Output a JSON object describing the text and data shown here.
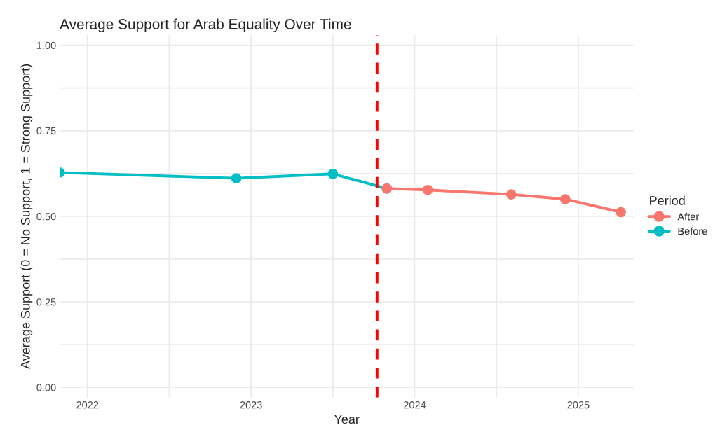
{
  "chart_data": {
    "type": "line",
    "title": "Average Support for Arab Equality Over Time",
    "xlabel": "Year",
    "ylabel": "Average Support (0 = No Support, 1 = Strong Support)",
    "legend_title": "Period",
    "series": [
      {
        "name": "After",
        "color": "#f8766d",
        "x": [
          2023.83,
          2024.08,
          2024.59,
          2024.92,
          2025.26
        ],
        "values": [
          0.581,
          0.577,
          0.564,
          0.55,
          0.512
        ]
      },
      {
        "name": "Before",
        "color": "#00bfc4",
        "x": [
          2021.83,
          2022.91,
          2023.5,
          2023.83
        ],
        "values": [
          0.628,
          0.611,
          0.624,
          0.581
        ]
      }
    ],
    "xlim": [
      2021.83,
      2025.34
    ],
    "ylim": [
      -0.03,
      1.03
    ],
    "xticks": [
      2022,
      {
        "value": 2022.5,
        "label": null
      },
      2023,
      {
        "value": 2023.5,
        "label": null
      },
      2024,
      {
        "value": 2024.5,
        "label": null
      },
      2025
    ],
    "yticks": [
      {
        "value": 0,
        "label": "0.00"
      },
      {
        "value": 0.125,
        "label": null
      },
      0.25,
      {
        "value": 0.375,
        "label": null
      },
      {
        "value": 0.5,
        "label": "0.50"
      },
      {
        "value": 0.625,
        "label": null
      },
      0.75,
      {
        "value": 0.875,
        "label": null
      },
      {
        "value": 1,
        "label": "1.00"
      }
    ],
    "ref_lines": [
      {
        "axis": "x",
        "value": 2023.77,
        "color": "#ff0000",
        "line_style": "dashed"
      }
    ],
    "grid": true,
    "legend": "right",
    "marker": "circle",
    "line_style": "solid"
  }
}
